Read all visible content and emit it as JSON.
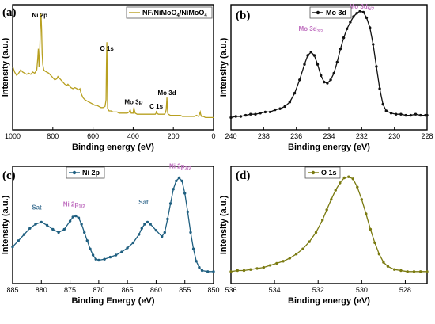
{
  "chart_data": [
    {
      "type": "line",
      "panel_label": "(a)",
      "xlabel": "Binding energy (eV)",
      "ylabel": "Intensity (a.u.)",
      "xlim": [
        1000,
        0
      ],
      "xticks": [
        1000,
        800,
        600,
        400,
        200,
        0
      ],
      "color": "#b8a020",
      "legend": {
        "name": "NF/NiMoO",
        "sub1": "4",
        "mid": "/NiMoO",
        "sub2": "4"
      },
      "annotations": [
        {
          "text": "Ni 2p",
          "x": 865,
          "y": 92,
          "color": "#000000"
        },
        {
          "text": "O 1s",
          "x": 531,
          "y": 62,
          "color": "#000000"
        },
        {
          "text": "Mo 3p",
          "x": 398,
          "y": 14,
          "color": "#000000"
        },
        {
          "text": "C 1s",
          "x": 285,
          "y": 10,
          "color": "#000000"
        },
        {
          "text": "Mo 3d",
          "x": 232,
          "y": 22,
          "color": "#000000"
        }
      ],
      "points": [
        [
          1000,
          50
        ],
        [
          990,
          45
        ],
        [
          980,
          42
        ],
        [
          970,
          44
        ],
        [
          960,
          47
        ],
        [
          950,
          45
        ],
        [
          940,
          44
        ],
        [
          930,
          43
        ],
        [
          920,
          44
        ],
        [
          910,
          43
        ],
        [
          900,
          45
        ],
        [
          890,
          44
        ],
        [
          880,
          47
        ],
        [
          875,
          58
        ],
        [
          872,
          66
        ],
        [
          869,
          50
        ],
        [
          866,
          57
        ],
        [
          862,
          86
        ],
        [
          859,
          98
        ],
        [
          856,
          84
        ],
        [
          853,
          62
        ],
        [
          850,
          52
        ],
        [
          845,
          47
        ],
        [
          840,
          46
        ],
        [
          830,
          45
        ],
        [
          820,
          44
        ],
        [
          810,
          42
        ],
        [
          800,
          40
        ],
        [
          790,
          38
        ],
        [
          780,
          39
        ],
        [
          775,
          41
        ],
        [
          770,
          40
        ],
        [
          760,
          38
        ],
        [
          750,
          36
        ],
        [
          740,
          34
        ],
        [
          730,
          33
        ],
        [
          725,
          34
        ],
        [
          720,
          33
        ],
        [
          715,
          32
        ],
        [
          710,
          31
        ],
        [
          700,
          30
        ],
        [
          690,
          31
        ],
        [
          680,
          30
        ],
        [
          670,
          29
        ],
        [
          665,
          30
        ],
        [
          660,
          26
        ],
        [
          650,
          22
        ],
        [
          640,
          20
        ],
        [
          630,
          19
        ],
        [
          620,
          18
        ],
        [
          610,
          17
        ],
        [
          600,
          16
        ],
        [
          590,
          15
        ],
        [
          580,
          15
        ],
        [
          570,
          14
        ],
        [
          560,
          13
        ],
        [
          550,
          13
        ],
        [
          540,
          14
        ],
        [
          535,
          20
        ],
        [
          533,
          50
        ],
        [
          531,
          72
        ],
        [
          529,
          40
        ],
        [
          527,
          12
        ],
        [
          520,
          10
        ],
        [
          510,
          10
        ],
        [
          500,
          9
        ],
        [
          490,
          9
        ],
        [
          480,
          9
        ],
        [
          470,
          8
        ],
        [
          460,
          8
        ],
        [
          450,
          8
        ],
        [
          440,
          8
        ],
        [
          430,
          8
        ],
        [
          420,
          9
        ],
        [
          415,
          11
        ],
        [
          412,
          9
        ],
        [
          410,
          8
        ],
        [
          400,
          8
        ],
        [
          398,
          11
        ],
        [
          396,
          13
        ],
        [
          394,
          11
        ],
        [
          390,
          8
        ],
        [
          380,
          7
        ],
        [
          370,
          7
        ],
        [
          360,
          7
        ],
        [
          350,
          7
        ],
        [
          340,
          7
        ],
        [
          330,
          7
        ],
        [
          320,
          7
        ],
        [
          310,
          7
        ],
        [
          300,
          7
        ],
        [
          290,
          7
        ],
        [
          286,
          8
        ],
        [
          284,
          10
        ],
        [
          282,
          8
        ],
        [
          275,
          7
        ],
        [
          265,
          7
        ],
        [
          255,
          7
        ],
        [
          245,
          7
        ],
        [
          240,
          8
        ],
        [
          236,
          11
        ],
        [
          234,
          16
        ],
        [
          232,
          22
        ],
        [
          230,
          14
        ],
        [
          228,
          8
        ],
        [
          225,
          7
        ],
        [
          215,
          6
        ],
        [
          205,
          6
        ],
        [
          195,
          6
        ],
        [
          185,
          6
        ],
        [
          175,
          6
        ],
        [
          165,
          6
        ],
        [
          155,
          5
        ],
        [
          145,
          5
        ],
        [
          135,
          5
        ],
        [
          125,
          5
        ],
        [
          115,
          5
        ],
        [
          105,
          5
        ],
        [
          95,
          5
        ],
        [
          85,
          6
        ],
        [
          75,
          5
        ],
        [
          70,
          7
        ],
        [
          66,
          9
        ],
        [
          64,
          7
        ],
        [
          60,
          5
        ],
        [
          50,
          5
        ],
        [
          40,
          4
        ],
        [
          30,
          4
        ],
        [
          20,
          4
        ],
        [
          10,
          4
        ],
        [
          0,
          4
        ]
      ]
    },
    {
      "type": "line",
      "panel_label": "(b)",
      "xlabel": "Binding energy (eV)",
      "ylabel": "Intensity (a.u.)",
      "xlim": [
        240,
        228
      ],
      "xticks": [
        240,
        238,
        236,
        234,
        232,
        230,
        228
      ],
      "color": "#111111",
      "legend": {
        "name": "Mo 3d"
      },
      "annotations": [
        {
          "text": "Mo 3d",
          "sub": "5/2",
          "x": 232.0,
          "y": 100,
          "color": "#c070c0"
        },
        {
          "text": "Mo 3d",
          "sub": "3/2",
          "x": 235.1,
          "y": 80,
          "color": "#c070c0"
        }
      ],
      "points": [
        [
          240,
          4
        ],
        [
          239.7,
          5
        ],
        [
          239.4,
          5
        ],
        [
          239.1,
          6
        ],
        [
          238.8,
          7
        ],
        [
          238.5,
          7
        ],
        [
          238.2,
          8
        ],
        [
          237.9,
          9
        ],
        [
          237.6,
          9
        ],
        [
          237.3,
          11
        ],
        [
          237.0,
          12
        ],
        [
          236.7,
          14
        ],
        [
          236.4,
          18
        ],
        [
          236.1,
          26
        ],
        [
          235.8,
          38
        ],
        [
          235.5,
          52
        ],
        [
          235.3,
          60
        ],
        [
          235.1,
          63
        ],
        [
          234.9,
          60
        ],
        [
          234.7,
          52
        ],
        [
          234.5,
          42
        ],
        [
          234.3,
          36
        ],
        [
          234.1,
          35
        ],
        [
          233.9,
          38
        ],
        [
          233.7,
          44
        ],
        [
          233.5,
          54
        ],
        [
          233.3,
          66
        ],
        [
          233.1,
          76
        ],
        [
          232.9,
          84
        ],
        [
          232.7,
          90
        ],
        [
          232.5,
          95
        ],
        [
          232.3,
          98
        ],
        [
          232.1,
          100
        ],
        [
          231.9,
          99
        ],
        [
          231.7,
          94
        ],
        [
          231.5,
          85
        ],
        [
          231.3,
          70
        ],
        [
          231.1,
          50
        ],
        [
          230.9,
          30
        ],
        [
          230.7,
          16
        ],
        [
          230.5,
          10
        ],
        [
          230.2,
          8
        ],
        [
          229.9,
          7
        ],
        [
          229.6,
          7
        ],
        [
          229.3,
          6
        ],
        [
          229.0,
          6
        ],
        [
          228.7,
          7
        ],
        [
          228.4,
          6
        ],
        [
          228.1,
          6
        ],
        [
          228.0,
          6
        ]
      ]
    },
    {
      "type": "line",
      "panel_label": "(c)",
      "xlabel": "Binding Energy (eV)",
      "ylabel": "Intensity (a.u.)",
      "xlim": [
        885,
        850
      ],
      "xticks": [
        885,
        880,
        875,
        870,
        865,
        860,
        855,
        850
      ],
      "color": "#1f5f80",
      "legend": {
        "name": "Ni 2p"
      },
      "annotations": [
        {
          "text": "Sat",
          "x": 880.8,
          "y": 62,
          "color": "#4a7a9a"
        },
        {
          "text": "Ni 2p",
          "sub": "1/2",
          "x": 874.3,
          "y": 65,
          "color": "#c070c0"
        },
        {
          "text": "Sat",
          "x": 862.2,
          "y": 67,
          "color": "#4a7a9a"
        },
        {
          "text": "Ni 2p",
          "sub": "3/2",
          "x": 855.8,
          "y": 102,
          "color": "#c070c0"
        }
      ],
      "points": [
        [
          885,
          28
        ],
        [
          884,
          34
        ],
        [
          883,
          40
        ],
        [
          882,
          46
        ],
        [
          881,
          50
        ],
        [
          880,
          52
        ],
        [
          879,
          49
        ],
        [
          878,
          45
        ],
        [
          877,
          42
        ],
        [
          876,
          45
        ],
        [
          875,
          53
        ],
        [
          874.5,
          57
        ],
        [
          874,
          58
        ],
        [
          873.5,
          56
        ],
        [
          873,
          50
        ],
        [
          872.5,
          42
        ],
        [
          872,
          34
        ],
        [
          871.5,
          26
        ],
        [
          871,
          20
        ],
        [
          870.5,
          16
        ],
        [
          870,
          15
        ],
        [
          869,
          16
        ],
        [
          868,
          18
        ],
        [
          867,
          20
        ],
        [
          866,
          23
        ],
        [
          865,
          27
        ],
        [
          864,
          32
        ],
        [
          863,
          40
        ],
        [
          862.5,
          46
        ],
        [
          862,
          50
        ],
        [
          861.5,
          52
        ],
        [
          861,
          50
        ],
        [
          860,
          44
        ],
        [
          859,
          38
        ],
        [
          858.5,
          42
        ],
        [
          858,
          55
        ],
        [
          857.5,
          70
        ],
        [
          857,
          84
        ],
        [
          856.5,
          92
        ],
        [
          856,
          95
        ],
        [
          855.5,
          92
        ],
        [
          855,
          80
        ],
        [
          854.5,
          62
        ],
        [
          854,
          42
        ],
        [
          853.5,
          26
        ],
        [
          853,
          14
        ],
        [
          852.5,
          8
        ],
        [
          852,
          5
        ],
        [
          851,
          4
        ],
        [
          850,
          4
        ]
      ]
    },
    {
      "type": "line",
      "panel_label": "(d)",
      "xlabel": "Binding energy (eV)",
      "ylabel": "Intensity (a.u.)",
      "xlim": [
        536,
        527
      ],
      "xticks": [
        536,
        534,
        532,
        530,
        528
      ],
      "color": "#7a7a10",
      "legend": {
        "name": "O 1s"
      },
      "annotations": [],
      "points": [
        [
          536,
          4
        ],
        [
          535.7,
          5
        ],
        [
          535.4,
          5
        ],
        [
          535.1,
          6
        ],
        [
          534.8,
          7
        ],
        [
          534.5,
          8
        ],
        [
          534.2,
          10
        ],
        [
          533.9,
          12
        ],
        [
          533.6,
          14
        ],
        [
          533.3,
          17
        ],
        [
          533.0,
          21
        ],
        [
          532.7,
          26
        ],
        [
          532.4,
          33
        ],
        [
          532.1,
          42
        ],
        [
          531.8,
          54
        ],
        [
          531.6,
          64
        ],
        [
          531.4,
          74
        ],
        [
          531.2,
          83
        ],
        [
          531.0,
          90
        ],
        [
          530.8,
          95
        ],
        [
          530.6,
          96
        ],
        [
          530.4,
          94
        ],
        [
          530.2,
          86
        ],
        [
          530.0,
          74
        ],
        [
          529.8,
          60
        ],
        [
          529.6,
          45
        ],
        [
          529.4,
          32
        ],
        [
          529.2,
          21
        ],
        [
          529.0,
          13
        ],
        [
          528.8,
          9
        ],
        [
          528.5,
          6
        ],
        [
          528.2,
          5
        ],
        [
          527.9,
          4
        ],
        [
          527.6,
          4
        ],
        [
          527.3,
          4
        ],
        [
          527.0,
          4
        ]
      ]
    }
  ]
}
